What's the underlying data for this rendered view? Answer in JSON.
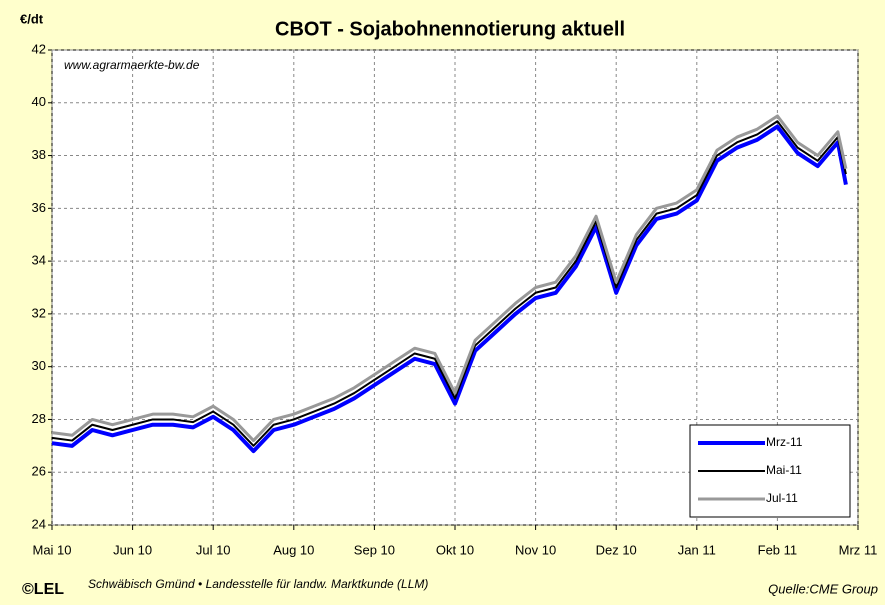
{
  "chart_data": {
    "type": "line",
    "title": "CBOT - Sojabohnennotierung aktuell",
    "y_label": "€/dt",
    "annotation": "www.agrarmaerkte-bw.de",
    "footer_left": "Schwäbisch Gmünd • Landesstelle für landw. Marktkunde (LLM)",
    "footer_right": "Quelle:CME Group",
    "logo": "©LEL",
    "x": [
      0,
      0.25,
      0.5,
      0.75,
      1,
      1.25,
      1.5,
      1.75,
      2,
      2.25,
      2.5,
      2.75,
      3,
      3.25,
      3.5,
      3.75,
      4,
      4.25,
      4.5,
      4.75,
      5,
      5.25,
      5.5,
      5.75,
      6,
      6.25,
      6.5,
      6.75,
      7,
      7.25,
      7.5,
      7.75,
      8,
      8.25,
      8.5,
      8.75,
      9,
      9.25,
      9.5,
      9.75,
      9.85
    ],
    "series": [
      {
        "name": "Mrz-11",
        "color": "#0000ff",
        "width": 4,
        "values": [
          27.1,
          27.0,
          27.6,
          27.4,
          27.6,
          27.8,
          27.8,
          27.7,
          28.1,
          27.6,
          26.8,
          27.6,
          27.8,
          28.1,
          28.4,
          28.8,
          29.3,
          29.8,
          30.3,
          30.1,
          28.6,
          30.6,
          31.3,
          32.0,
          32.6,
          32.8,
          33.8,
          35.3,
          32.8,
          34.6,
          35.6,
          35.8,
          36.3,
          37.8,
          38.3,
          38.6,
          39.1,
          38.1,
          37.6,
          38.5,
          36.9
        ]
      },
      {
        "name": "Mai-11",
        "color": "#000000",
        "width": 2,
        "values": [
          27.3,
          27.2,
          27.8,
          27.6,
          27.8,
          28.0,
          28.0,
          27.9,
          28.3,
          27.8,
          27.0,
          27.8,
          28.0,
          28.3,
          28.6,
          29.0,
          29.5,
          30.0,
          30.5,
          30.3,
          28.8,
          30.8,
          31.5,
          32.2,
          32.8,
          33.0,
          34.0,
          35.5,
          33.0,
          34.8,
          35.8,
          36.0,
          36.5,
          38.0,
          38.5,
          38.8,
          39.3,
          38.3,
          37.8,
          38.7,
          37.3
        ]
      },
      {
        "name": "Jul-11",
        "color": "#999999",
        "width": 3,
        "values": [
          27.5,
          27.4,
          28.0,
          27.8,
          28.0,
          28.2,
          28.2,
          28.1,
          28.5,
          28.0,
          27.2,
          28.0,
          28.2,
          28.5,
          28.8,
          29.2,
          29.7,
          30.2,
          30.7,
          30.5,
          29.0,
          31.0,
          31.7,
          32.4,
          33.0,
          33.2,
          34.2,
          35.7,
          33.2,
          35.0,
          36.0,
          36.2,
          36.7,
          38.2,
          38.7,
          39.0,
          39.5,
          38.5,
          38.0,
          38.9,
          37.5
        ]
      }
    ],
    "xlim": [
      0,
      10
    ],
    "xticks": [
      {
        "value": 0,
        "label": "Mai 10"
      },
      {
        "value": 1,
        "label": "Jun 10"
      },
      {
        "value": 2,
        "label": "Jul 10"
      },
      {
        "value": 3,
        "label": "Aug 10"
      },
      {
        "value": 4,
        "label": "Sep 10"
      },
      {
        "value": 5,
        "label": "Okt 10"
      },
      {
        "value": 6,
        "label": "Nov 10"
      },
      {
        "value": 7,
        "label": "Dez 10"
      },
      {
        "value": 8,
        "label": "Jan 11"
      },
      {
        "value": 9,
        "label": "Feb 11"
      },
      {
        "value": 10,
        "label": "Mrz 11"
      }
    ],
    "ylim": [
      24,
      42
    ],
    "yticks": [
      24,
      26,
      28,
      30,
      32,
      34,
      36,
      38,
      40,
      42
    ],
    "grid": true,
    "legend": "lower right"
  }
}
